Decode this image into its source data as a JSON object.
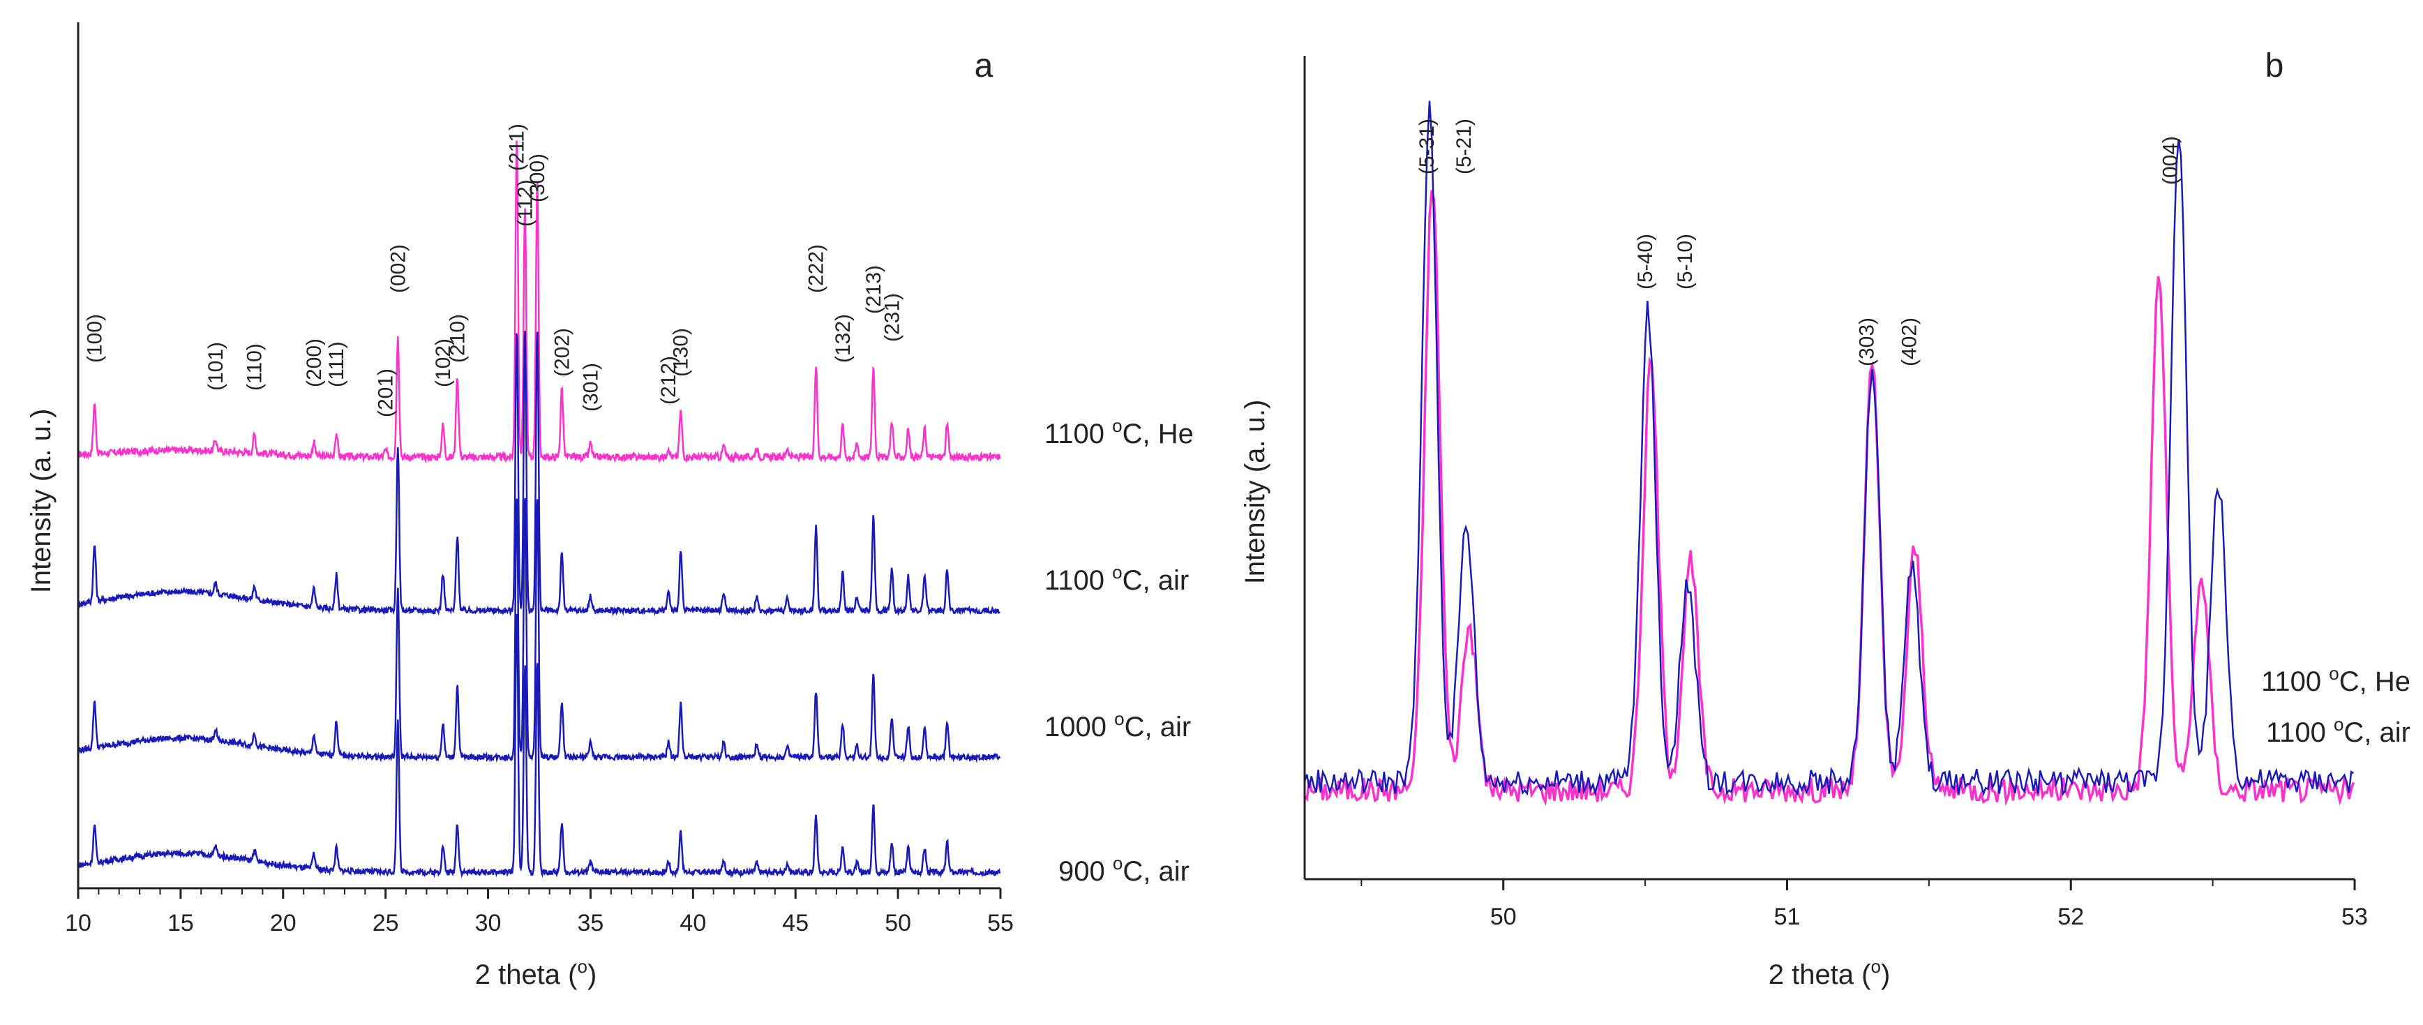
{
  "chart_data": [
    {
      "type": "line",
      "panel_label": "a",
      "xlabel": "2 theta (",
      "xlabel_sup": "o",
      "xlabel_end": ")",
      "ylabel": "Intensity (a. u.)",
      "xlim": [
        10,
        55
      ],
      "x_ticks": [
        10,
        15,
        20,
        25,
        30,
        35,
        40,
        45,
        50,
        55
      ],
      "y_ticks": false,
      "series": [
        {
          "name": "1100 °C, He",
          "label_main": "1100 ",
          "label_sup": "o",
          "label_rest": "C, He",
          "color": "#ff33cc",
          "baseline": 0.0,
          "peaks": [
            [
              10.8,
              22
            ],
            [
              16.7,
              5
            ],
            [
              18.6,
              8
            ],
            [
              21.5,
              6
            ],
            [
              22.6,
              10
            ],
            [
              25.0,
              3
            ],
            [
              25.6,
              52
            ],
            [
              27.8,
              14
            ],
            [
              28.5,
              35
            ],
            [
              31.4,
              140
            ],
            [
              31.8,
              108
            ],
            [
              32.4,
              120
            ],
            [
              33.6,
              30
            ],
            [
              35.0,
              6
            ],
            [
              38.8,
              4
            ],
            [
              39.4,
              20
            ],
            [
              41.5,
              5
            ],
            [
              43.1,
              4
            ],
            [
              44.6,
              4
            ],
            [
              46.0,
              40
            ],
            [
              47.3,
              14
            ],
            [
              48.0,
              6
            ],
            [
              48.8,
              40
            ],
            [
              49.7,
              16
            ],
            [
              50.5,
              12
            ],
            [
              51.3,
              12
            ],
            [
              52.4,
              14
            ]
          ]
        },
        {
          "name": "1100 °C, air",
          "label_main": "1100 ",
          "label_sup": "o",
          "label_rest": "C, air",
          "color": "#1a1ab8",
          "baseline": 0.0,
          "peaks": [
            [
              10.8,
              30
            ],
            [
              16.7,
              6
            ],
            [
              18.6,
              7
            ],
            [
              21.5,
              10
            ],
            [
              22.6,
              18
            ],
            [
              25.6,
              88
            ],
            [
              27.8,
              20
            ],
            [
              28.5,
              40
            ],
            [
              31.4,
              150
            ],
            [
              31.8,
              150
            ],
            [
              32.4,
              150
            ],
            [
              33.6,
              30
            ],
            [
              35.0,
              8
            ],
            [
              38.8,
              10
            ],
            [
              39.4,
              32
            ],
            [
              41.5,
              10
            ],
            [
              43.1,
              7
            ],
            [
              44.6,
              6
            ],
            [
              46.0,
              45
            ],
            [
              47.3,
              20
            ],
            [
              48.0,
              8
            ],
            [
              48.8,
              50
            ],
            [
              49.7,
              22
            ],
            [
              50.5,
              18
            ],
            [
              51.3,
              18
            ],
            [
              52.4,
              22
            ]
          ]
        },
        {
          "name": "1000 °C, air",
          "label_main": "1000 ",
          "label_sup": "o",
          "label_rest": "C, air",
          "color": "#1a1ab8",
          "baseline": 0.0,
          "peaks": [
            [
              10.8,
              25
            ],
            [
              16.7,
              6
            ],
            [
              18.6,
              7
            ],
            [
              21.5,
              10
            ],
            [
              22.6,
              18
            ],
            [
              25.6,
              90
            ],
            [
              27.8,
              18
            ],
            [
              28.5,
              38
            ],
            [
              31.4,
              140
            ],
            [
              31.8,
              140
            ],
            [
              32.4,
              140
            ],
            [
              33.6,
              30
            ],
            [
              35.0,
              8
            ],
            [
              38.8,
              8
            ],
            [
              39.4,
              28
            ],
            [
              41.5,
              8
            ],
            [
              43.1,
              6
            ],
            [
              44.6,
              5
            ],
            [
              46.0,
              35
            ],
            [
              47.3,
              18
            ],
            [
              48.0,
              6
            ],
            [
              48.8,
              44
            ],
            [
              49.7,
              20
            ],
            [
              50.5,
              16
            ],
            [
              51.3,
              16
            ],
            [
              52.4,
              18
            ]
          ]
        },
        {
          "name": "900 °C, air",
          "label_main": "900 ",
          "label_sup": "o",
          "label_rest": "C, air",
          "color": "#1a1ab8",
          "baseline": 0.0,
          "peaks": [
            [
              10.8,
              20
            ],
            [
              16.7,
              5
            ],
            [
              18.6,
              6
            ],
            [
              21.5,
              8
            ],
            [
              22.6,
              12
            ],
            [
              25.6,
              80
            ],
            [
              27.8,
              14
            ],
            [
              28.5,
              26
            ],
            [
              31.4,
              140
            ],
            [
              31.8,
              110
            ],
            [
              32.4,
              112
            ],
            [
              33.6,
              26
            ],
            [
              35.0,
              6
            ],
            [
              38.8,
              6
            ],
            [
              39.4,
              22
            ],
            [
              41.5,
              7
            ],
            [
              43.1,
              5
            ],
            [
              44.6,
              5
            ],
            [
              46.0,
              30
            ],
            [
              47.3,
              14
            ],
            [
              48.0,
              5
            ],
            [
              48.8,
              36
            ],
            [
              49.7,
              16
            ],
            [
              50.5,
              13
            ],
            [
              51.3,
              13
            ],
            [
              52.4,
              16
            ]
          ]
        }
      ],
      "annotations": [
        {
          "text": "(100)",
          "x": 10.8
        },
        {
          "text": "(101)",
          "x": 16.7
        },
        {
          "text": "(110)",
          "x": 18.6
        },
        {
          "text": "(200)",
          "x": 21.5
        },
        {
          "text": "(111)",
          "x": 22.6
        },
        {
          "text": "(201)",
          "x": 25.0
        },
        {
          "text": "(002)",
          "x": 25.6
        },
        {
          "text": "(102)",
          "x": 27.8
        },
        {
          "text": "(210)",
          "x": 28.5
        },
        {
          "text": "(211)",
          "x": 31.4
        },
        {
          "text": "(112)",
          "x": 31.8
        },
        {
          "text": "(300)",
          "x": 32.4
        },
        {
          "text": "(202)",
          "x": 33.6
        },
        {
          "text": "(301)",
          "x": 35.0
        },
        {
          "text": "(212)",
          "x": 38.8
        },
        {
          "text": "(130)",
          "x": 39.4
        },
        {
          "text": "(222)",
          "x": 46.0
        },
        {
          "text": "(132)",
          "x": 47.3
        },
        {
          "text": "(213)",
          "x": 48.8
        },
        {
          "text": "(231)",
          "x": 49.7
        }
      ]
    },
    {
      "type": "line",
      "panel_label": "b",
      "xlabel": "2 theta (",
      "xlabel_sup": "o",
      "xlabel_end": ")",
      "ylabel": "Intensity (a. u.)",
      "xlim": [
        49.3,
        53
      ],
      "x_ticks": [
        50,
        51,
        52,
        53
      ],
      "y_ticks": false,
      "legend_position": "right",
      "series": [
        {
          "name": "1100 °C, He",
          "label_main": "1100 ",
          "label_sup": "o",
          "label_rest": "C, He",
          "color": "#ff33cc",
          "peaks": [
            [
              49.75,
              0.85
            ],
            [
              49.88,
              0.23
            ],
            [
              50.52,
              0.6
            ],
            [
              50.66,
              0.32
            ],
            [
              51.3,
              0.6
            ],
            [
              51.45,
              0.34
            ],
            [
              52.31,
              0.72
            ],
            [
              52.46,
              0.3
            ]
          ]
        },
        {
          "name": "1100 °C, air",
          "label_main": "1100 ",
          "label_sup": "o",
          "label_rest": "C, air",
          "color": "#1a1ab8",
          "peaks": [
            [
              49.74,
              0.94
            ],
            [
              49.87,
              0.36
            ],
            [
              50.51,
              0.66
            ],
            [
              50.65,
              0.28
            ],
            [
              51.3,
              0.58
            ],
            [
              51.44,
              0.3
            ],
            [
              52.38,
              0.92
            ],
            [
              52.52,
              0.42
            ]
          ]
        }
      ],
      "annotations": [
        {
          "text": "(5-31)",
          "x": 49.73
        },
        {
          "text": "(5-21)",
          "x": 49.86
        },
        {
          "text": "(5-40)",
          "x": 50.5
        },
        {
          "text": "(5-10)",
          "x": 50.64
        },
        {
          "text": "(303)",
          "x": 51.28
        },
        {
          "text": "(402)",
          "x": 51.43
        },
        {
          "text": "(004)",
          "x": 52.35
        }
      ]
    }
  ]
}
